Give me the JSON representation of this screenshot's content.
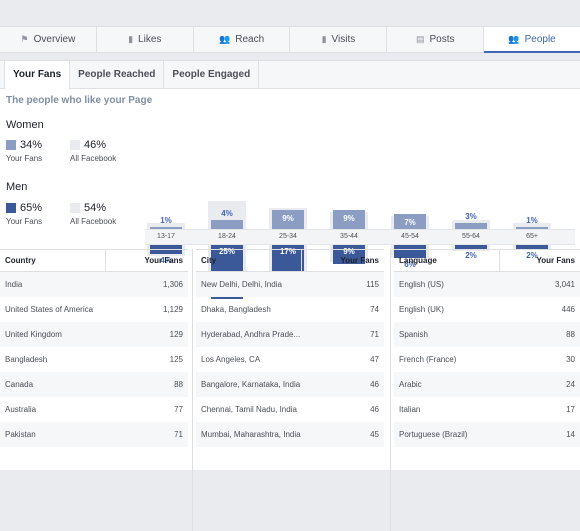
{
  "nav": [
    {
      "label": "Overview",
      "icon": "flag-icon",
      "glyph": "⚑"
    },
    {
      "label": "Likes",
      "icon": "bar-chart-icon",
      "glyph": "▮"
    },
    {
      "label": "Reach",
      "icon": "people-icon",
      "glyph": "👥"
    },
    {
      "label": "Visits",
      "icon": "bar-chart-icon",
      "glyph": "▮"
    },
    {
      "label": "Posts",
      "icon": "posts-icon",
      "glyph": "▤"
    },
    {
      "label": "People",
      "icon": "people-icon",
      "glyph": "👥",
      "active": true
    }
  ],
  "subtabs": [
    "Your Fans",
    "People Reached",
    "People Engaged"
  ],
  "heading": "The people who like your Page",
  "gender": {
    "women": {
      "label": "Women",
      "fans_pct": "34%",
      "all_pct": "46%"
    },
    "men": {
      "label": "Men",
      "fans_pct": "65%",
      "all_pct": "54%"
    },
    "fans_label": "Your Fans",
    "all_label": "All Facebook"
  },
  "colors": {
    "women": "#8b9dc3",
    "men": "#3b5998",
    "all": "#e9ebee",
    "accent": "#4267b2"
  },
  "chart_data": {
    "type": "bar",
    "categories": [
      "13-17",
      "18-24",
      "25-34",
      "35-44",
      "45-54",
      "55-64",
      "65+"
    ],
    "series": [
      {
        "name": "Women",
        "values": [
          1,
          4,
          9,
          9,
          7,
          3,
          1
        ],
        "labels": [
          "1%",
          "4%",
          "9%",
          "9%",
          "7%",
          "3%",
          "1%"
        ]
      },
      {
        "name": "Men",
        "values": [
          4,
          25,
          17,
          9,
          6,
          2,
          2
        ],
        "labels": [
          "4%",
          "25%",
          "17%",
          "9%",
          "6%",
          "2%",
          "2%"
        ]
      }
    ],
    "all_facebook": {
      "women": [
        3,
        13,
        10,
        8,
        6,
        4,
        3
      ],
      "men": [
        5,
        16,
        12,
        8,
        6,
        3,
        2
      ]
    }
  },
  "tables": [
    {
      "header": [
        "Country",
        "Your Fans"
      ],
      "rows": [
        [
          "India",
          "1,306"
        ],
        [
          "United States of America",
          "1,129"
        ],
        [
          "United Kingdom",
          "129"
        ],
        [
          "Bangladesh",
          "125"
        ],
        [
          "Canada",
          "88"
        ],
        [
          "Australia",
          "77"
        ],
        [
          "Pakistan",
          "71"
        ]
      ]
    },
    {
      "header": [
        "City",
        "Your Fans"
      ],
      "rows": [
        [
          "New Delhi, Delhi, India",
          "115"
        ],
        [
          "Dhaka, Bangladesh",
          "74"
        ],
        [
          "Hyderabad, Andhra Prade...",
          "71"
        ],
        [
          "Los Angeles, CA",
          "47"
        ],
        [
          "Bangalore, Karnataka, India",
          "46"
        ],
        [
          "Chennai, Tamil Nadu, India",
          "46"
        ],
        [
          "Mumbai, Maharashtra, India",
          "45"
        ]
      ]
    },
    {
      "header": [
        "Language",
        "Your Fans"
      ],
      "rows": [
        [
          "English (US)",
          "3,041"
        ],
        [
          "English (UK)",
          "446"
        ],
        [
          "Spanish",
          "88"
        ],
        [
          "French (France)",
          "30"
        ],
        [
          "Arabic",
          "24"
        ],
        [
          "Italian",
          "17"
        ],
        [
          "Portuguese (Brazil)",
          "14"
        ]
      ]
    }
  ]
}
